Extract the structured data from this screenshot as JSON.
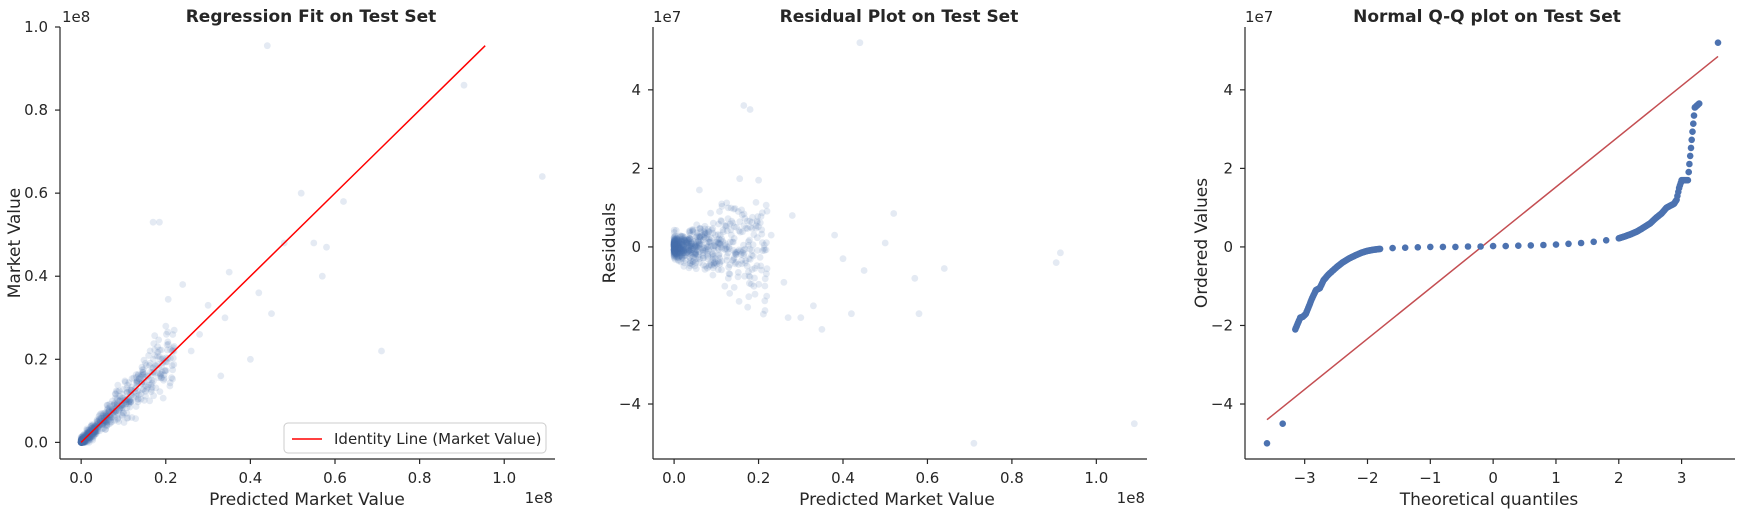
{
  "chart_data": [
    {
      "type": "scatter",
      "title": "Regression Fit on Test Set",
      "xlabel": "Predicted Market Value",
      "ylabel": "Market Value",
      "x_offset_label": "1e8",
      "y_offset_label": "1e8",
      "xlim": [
        -0.05,
        1.12
      ],
      "ylim": [
        -0.04,
        1.0
      ],
      "xticks": [
        0.0,
        0.2,
        0.4,
        0.6,
        0.8,
        1.0
      ],
      "xtick_labels": [
        "0.0",
        "0.2",
        "0.4",
        "0.6",
        "0.8",
        "1.0"
      ],
      "yticks": [
        0.0,
        0.2,
        0.4,
        0.6,
        0.8,
        1.0
      ],
      "ytick_labels": [
        "0.0",
        "0.2",
        "0.4",
        "0.6",
        "0.8",
        "1.0"
      ],
      "grid": false,
      "legend": {
        "position": "lower-right",
        "entries": [
          "Identity Line (Market Value)"
        ]
      },
      "identity_line": {
        "name": "Identity Line (Market Value)",
        "color": "#ff0000",
        "x": [
          0.0,
          0.955
        ],
        "y": [
          0.0,
          0.955
        ]
      },
      "points": {
        "color": "#4c72b0",
        "alpha": 0.15,
        "outliers": [
          [
            0.44,
            0.955
          ],
          [
            0.905,
            0.86
          ],
          [
            1.09,
            0.64
          ],
          [
            0.71,
            0.22
          ],
          [
            0.17,
            0.53
          ],
          [
            0.185,
            0.53
          ],
          [
            0.52,
            0.6
          ],
          [
            0.57,
            0.4
          ],
          [
            0.62,
            0.58
          ],
          [
            0.58,
            0.47
          ],
          [
            0.3,
            0.33
          ],
          [
            0.24,
            0.38
          ],
          [
            0.42,
            0.36
          ],
          [
            0.34,
            0.3
          ],
          [
            0.26,
            0.22
          ],
          [
            0.33,
            0.16
          ],
          [
            0.12,
            0.06
          ],
          [
            0.4,
            0.2
          ],
          [
            0.48,
            0.48
          ],
          [
            0.55,
            0.48
          ],
          [
            0.45,
            0.31
          ],
          [
            0.2,
            0.28
          ],
          [
            0.28,
            0.26
          ],
          [
            0.22,
            0.27
          ],
          [
            0.35,
            0.41
          ]
        ]
      }
    },
    {
      "type": "scatter",
      "title": "Residual Plot on Test Set",
      "xlabel": "Predicted Market Value",
      "ylabel": "Residuals",
      "x_offset_label": "1e8",
      "y_offset_label": "1e7",
      "xlim": [
        -0.05,
        1.12
      ],
      "ylim": [
        -5.4,
        5.6
      ],
      "xticks": [
        0.0,
        0.2,
        0.4,
        0.6,
        0.8,
        1.0
      ],
      "xtick_labels": [
        "0.0",
        "0.2",
        "0.4",
        "0.6",
        "0.8",
        "1.0"
      ],
      "yticks": [
        -4,
        -2,
        0,
        2,
        4
      ],
      "ytick_labels": [
        "−4",
        "−2",
        "0",
        "2",
        "4"
      ],
      "grid": false,
      "points": {
        "color": "#4c72b0",
        "alpha": 0.15,
        "outliers": [
          [
            0.44,
            5.2
          ],
          [
            0.165,
            3.6
          ],
          [
            0.18,
            3.5
          ],
          [
            0.71,
            -5.0
          ],
          [
            1.09,
            -4.5
          ],
          [
            0.905,
            -0.4
          ],
          [
            0.915,
            -0.15
          ],
          [
            0.52,
            0.85
          ],
          [
            0.64,
            -0.55
          ],
          [
            0.58,
            -1.7
          ],
          [
            0.57,
            -0.8
          ],
          [
            0.35,
            -2.1
          ],
          [
            0.3,
            -1.8
          ],
          [
            0.33,
            -1.5
          ],
          [
            0.27,
            -1.8
          ],
          [
            0.42,
            -1.7
          ],
          [
            0.2,
            1.7
          ],
          [
            0.06,
            1.45
          ],
          [
            0.5,
            0.1
          ],
          [
            0.45,
            -0.6
          ],
          [
            0.38,
            0.3
          ],
          [
            0.26,
            -0.9
          ],
          [
            0.23,
            0.3
          ],
          [
            0.4,
            -0.3
          ],
          [
            0.12,
            -1.0
          ],
          [
            0.28,
            0.8
          ]
        ]
      }
    },
    {
      "type": "scatter",
      "title": "Normal Q-Q plot on Test Set",
      "xlabel": "Theoretical quantiles",
      "ylabel": "Ordered Values",
      "y_offset_label": "1e7",
      "xlim": [
        -3.95,
        3.85
      ],
      "ylim": [
        -5.4,
        5.6
      ],
      "xticks": [
        -3,
        -2,
        -1,
        0,
        1,
        2,
        3
      ],
      "xtick_labels": [
        "−3",
        "−2",
        "−1",
        "0",
        "1",
        "2",
        "3"
      ],
      "yticks": [
        -4,
        -2,
        0,
        2,
        4
      ],
      "ytick_labels": [
        "−4",
        "−2",
        "0",
        "2",
        "4"
      ],
      "grid": false,
      "fit_line": {
        "color": "#c44e52",
        "x": [
          -3.6,
          3.58
        ],
        "y": [
          -4.4,
          4.85
        ]
      },
      "points": {
        "color": "#4c72b0",
        "alpha": 1.0,
        "x": [
          -3.6,
          -3.35,
          -3.15,
          -3.07,
          -3.03,
          -2.98,
          -2.93,
          -2.88,
          -2.82,
          -2.76,
          -2.7,
          -2.62,
          -2.55,
          -2.48,
          -2.4,
          -2.3,
          -2.2,
          -2.1,
          -2.0,
          -1.9,
          -1.8,
          -1.6,
          -1.4,
          -1.2,
          -1.0,
          -0.8,
          -0.6,
          -0.4,
          -0.2,
          0.0,
          0.2,
          0.4,
          0.6,
          0.8,
          1.0,
          1.2,
          1.4,
          1.6,
          1.8,
          2.0,
          2.1,
          2.2,
          2.3,
          2.4,
          2.5,
          2.6,
          2.68,
          2.76,
          2.82,
          2.88,
          2.92,
          2.96,
          3.0,
          3.05,
          3.1,
          3.21,
          3.28,
          3.58
        ],
        "y": [
          -5.0,
          -4.5,
          -2.1,
          -1.8,
          -1.78,
          -1.7,
          -1.5,
          -1.3,
          -1.1,
          -1.05,
          -0.85,
          -0.7,
          -0.6,
          -0.5,
          -0.4,
          -0.3,
          -0.22,
          -0.15,
          -0.1,
          -0.07,
          -0.05,
          -0.03,
          -0.02,
          -0.01,
          0.0,
          0.0,
          0.0,
          0.01,
          0.01,
          0.02,
          0.02,
          0.03,
          0.04,
          0.05,
          0.06,
          0.08,
          0.1,
          0.13,
          0.17,
          0.22,
          0.27,
          0.33,
          0.4,
          0.5,
          0.6,
          0.75,
          0.85,
          1.0,
          1.05,
          1.1,
          1.2,
          1.5,
          1.7,
          1.7,
          1.7,
          3.55,
          3.65,
          5.2
        ]
      }
    }
  ]
}
